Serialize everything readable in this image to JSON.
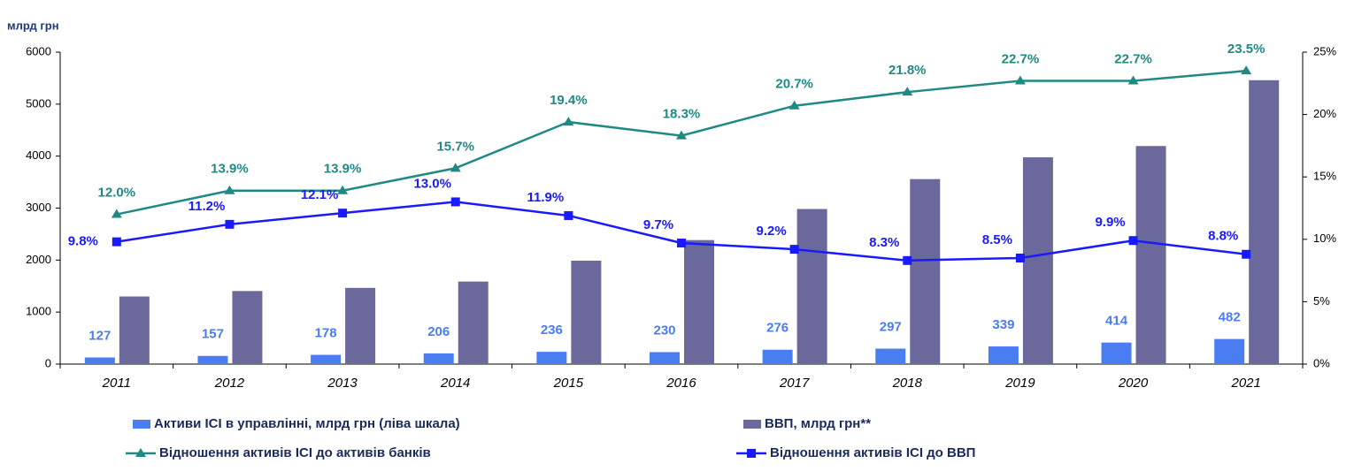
{
  "chart_data": {
    "type": "bar-line",
    "ylabel": "млрд грн",
    "categories": [
      "2011",
      "2012",
      "2013",
      "2014",
      "2015",
      "2016",
      "2017",
      "2018",
      "2019",
      "2020",
      "2021"
    ],
    "ylim": [
      0,
      6000
    ],
    "yticks": [
      0,
      1000,
      2000,
      3000,
      4000,
      5000,
      6000
    ],
    "y2lim": [
      0,
      25
    ],
    "y2ticks": [
      {
        "value": 0,
        "label": "0%"
      },
      {
        "value": 5,
        "label": "5%"
      },
      {
        "value": 10,
        "label": "10%"
      },
      {
        "value": 15,
        "label": "15%"
      },
      {
        "value": 20,
        "label": "20%"
      },
      {
        "value": 25,
        "label": "25%"
      }
    ],
    "series": [
      {
        "name": "Активи ІСІ в управлінні, млрд грн (ліва шкала)",
        "kind": "bar",
        "color": "#4a7cf2",
        "values": [
          127,
          157,
          178,
          206,
          236,
          230,
          276,
          297,
          339,
          414,
          482
        ]
      },
      {
        "name": "ВВП, млрд грн**",
        "kind": "bar",
        "color": "#6b699c",
        "values": [
          1300,
          1405,
          1465,
          1587,
          1989,
          2385,
          2983,
          3558,
          3977,
          4194,
          5460
        ]
      },
      {
        "name": "Відношення активів ІСІ до активів банків",
        "kind": "line",
        "axis": "y2",
        "color": "#1f8a84",
        "marker": "triangle",
        "values": [
          12.0,
          13.9,
          13.9,
          15.7,
          19.4,
          18.3,
          20.7,
          21.8,
          22.7,
          22.7,
          23.5
        ],
        "value_labels": [
          "12.0%",
          "13.9%",
          "13.9%",
          "15.7%",
          "19.4%",
          "18.3%",
          "20.7%",
          "21.8%",
          "22.7%",
          "22.7%",
          "23.5%"
        ]
      },
      {
        "name": "Відношення активів ІСІ до ВВП",
        "kind": "line",
        "axis": "y2",
        "color": "#1a1aff",
        "marker": "square",
        "values": [
          9.8,
          11.2,
          12.1,
          13.0,
          11.9,
          9.7,
          9.2,
          8.3,
          8.5,
          9.9,
          8.8
        ],
        "value_labels": [
          "9.8%",
          "11.2%",
          "12.1%",
          "13.0%",
          "11.9%",
          "9.7%",
          "9.2%",
          "8.3%",
          "8.5%",
          "9.9%",
          "8.8%"
        ]
      }
    ]
  }
}
